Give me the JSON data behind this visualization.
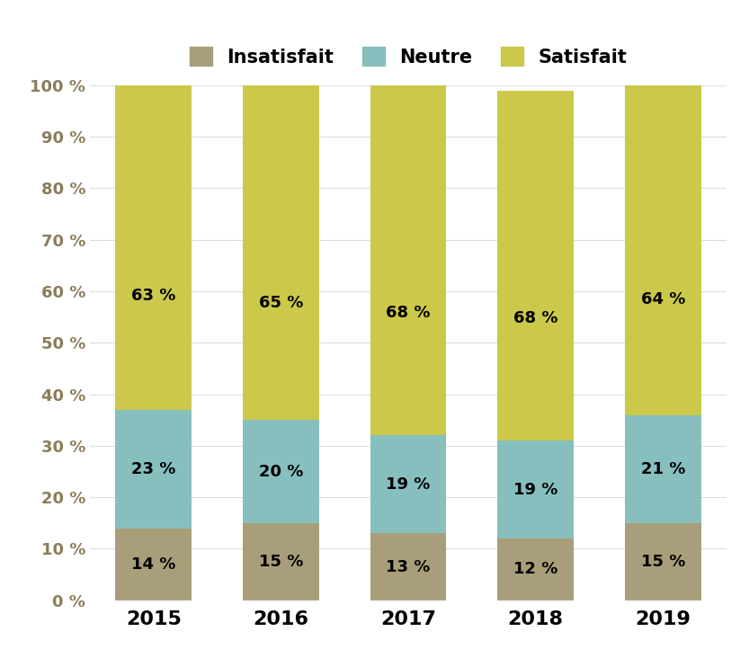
{
  "years": [
    "2015",
    "2016",
    "2017",
    "2018",
    "2019"
  ],
  "insatisfait": [
    14,
    15,
    13,
    12,
    15
  ],
  "neutre": [
    23,
    20,
    19,
    19,
    21
  ],
  "satisfait": [
    63,
    65,
    68,
    68,
    64
  ],
  "color_insatisfait": "#A89F7A",
  "color_neutre": "#87BFBF",
  "color_satisfait": "#CCC84A",
  "legend_labels": [
    "Insatisfait",
    "Neutre",
    "Satisfait"
  ],
  "yticks": [
    0,
    10,
    20,
    30,
    40,
    50,
    60,
    70,
    80,
    90,
    100
  ],
  "ytick_labels": [
    "0 %",
    "10 %",
    "20 %",
    "30 %",
    "40 %",
    "50 %",
    "60 %",
    "70 %",
    "80 %",
    "90 %",
    "100 %"
  ],
  "bar_width": 0.6,
  "label_fontsize": 13,
  "tick_fontsize": 13,
  "legend_fontsize": 15,
  "axis_color": "#8B7D5A",
  "background_color": "#ffffff"
}
